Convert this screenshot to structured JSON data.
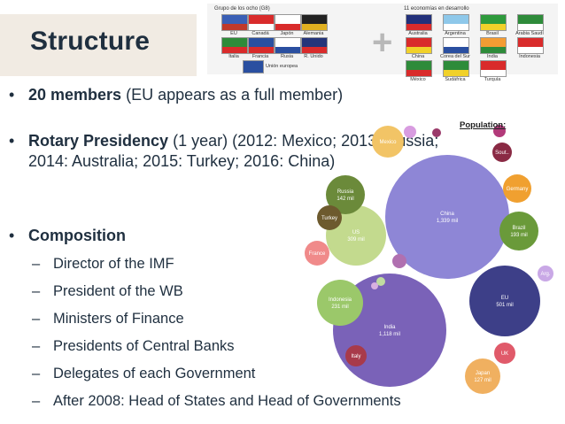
{
  "title": "Structure",
  "flags": {
    "g8_caption": "Grupo de los ocho (G8)",
    "eleven_caption": "11 economías en desarrollo",
    "g8": [
      {
        "name": "EU",
        "color": "#3a5fb5",
        "accent": "#c0392b"
      },
      {
        "name": "Canadá",
        "color": "#d92b2b",
        "accent": "#ffffff"
      },
      {
        "name": "Japón",
        "color": "#ffffff",
        "accent": "#d92b2b"
      },
      {
        "name": "Alemania",
        "color": "#222222",
        "accent": "#e0b020"
      },
      {
        "name": "Italia",
        "color": "#2e8b3a",
        "accent": "#d92b2b"
      },
      {
        "name": "Francia",
        "color": "#2a4fa0",
        "accent": "#d92b2b"
      },
      {
        "name": "Rusia",
        "color": "#ffffff",
        "accent": "#2a4fa0"
      },
      {
        "name": "R. Unido",
        "color": "#24357a",
        "accent": "#d92b2b"
      }
    ],
    "eu_name": "Unión europea",
    "eleven": [
      {
        "name": "Australia",
        "color": "#22307a",
        "accent": "#d92b2b"
      },
      {
        "name": "Argentina",
        "color": "#8ec8ea",
        "accent": "#ffffff"
      },
      {
        "name": "Brasil",
        "color": "#2e9a3c",
        "accent": "#f1d12a"
      },
      {
        "name": "Arabia Saudí",
        "color": "#2e8b3a",
        "accent": "#ffffff"
      },
      {
        "name": "China",
        "color": "#d92b2b",
        "accent": "#f1d12a"
      },
      {
        "name": "Corea del Sur",
        "color": "#ffffff",
        "accent": "#2a4fa0"
      },
      {
        "name": "India",
        "color": "#f39c33",
        "accent": "#2e8b3a"
      },
      {
        "name": "Indonesia",
        "color": "#d92b2b",
        "accent": "#ffffff"
      },
      {
        "name": "México",
        "color": "#2e8b3a",
        "accent": "#d92b2b"
      },
      {
        "name": "Sudáfrica",
        "color": "#2e8b3a",
        "accent": "#f1d12a"
      },
      {
        "name": "Turquía",
        "color": "#d92b2b",
        "accent": "#ffffff"
      }
    ]
  },
  "bullets": [
    {
      "bold": "20 members",
      "rest": " (EU appears as a full member)"
    },
    {
      "bold": "Rotary Presidency",
      "rest": " (1 year) (2012: Mexico; 2013: Russia; 2014: Australia; 2015: Turkey; 2016: China)"
    },
    {
      "bold": "Composition",
      "rest": ""
    }
  ],
  "composition": [
    "Director of the IMF",
    "President of the WB",
    "Ministers of Finance",
    "Presidents of Central Banks",
    "Delegates of each Government",
    "After 2008: Head of States and Head of Governments"
  ],
  "population_label": "Population:",
  "bubbles": [
    {
      "label": "China",
      "value": "1,339 mil",
      "color": "#8e86d6"
    },
    {
      "label": "India",
      "value": "1,118 mil",
      "color": "#7a62b8"
    },
    {
      "label": "EU",
      "value": "501 mil",
      "color": "#3d3f88"
    },
    {
      "label": "US",
      "value": "309 mil",
      "color": "#c3da8e"
    },
    {
      "label": "Indonesia",
      "value": "231 mil",
      "color": "#9bc86a"
    },
    {
      "label": "Russia",
      "value": "142 mil",
      "color": "#6b8a3a"
    },
    {
      "label": "Brazil",
      "value": "193 mil",
      "color": "#6a9a3a"
    },
    {
      "label": "Japan",
      "value": "127 mil",
      "color": "#f0b060"
    },
    {
      "label": "Mexico",
      "value": "",
      "color": "#f2c466"
    },
    {
      "label": "Germany",
      "value": "",
      "color": "#f0a030"
    },
    {
      "label": "Turkey",
      "value": "",
      "color": "#6d5a2e"
    },
    {
      "label": "France",
      "value": "",
      "color": "#f08a8a"
    },
    {
      "label": "UK",
      "value": "",
      "color": "#e05a6a"
    },
    {
      "label": "Italy",
      "value": "",
      "color": "#a83a4a"
    },
    {
      "label": "Arg.",
      "value": "",
      "color": "#c9a8e6"
    },
    {
      "label": "Sout..",
      "value": "",
      "color": "#8a2a44"
    },
    {
      "label": "",
      "value": "",
      "color": "#b23a7a"
    },
    {
      "label": "",
      "value": "",
      "color": "#d89ce0"
    },
    {
      "label": "",
      "value": "",
      "color": "#b070b0"
    },
    {
      "label": "",
      "value": "",
      "color": "#9a3a6a"
    },
    {
      "label": "",
      "value": "",
      "color": "#c0dca0"
    },
    {
      "label": "",
      "value": "",
      "color": "#d8b0e0"
    }
  ]
}
